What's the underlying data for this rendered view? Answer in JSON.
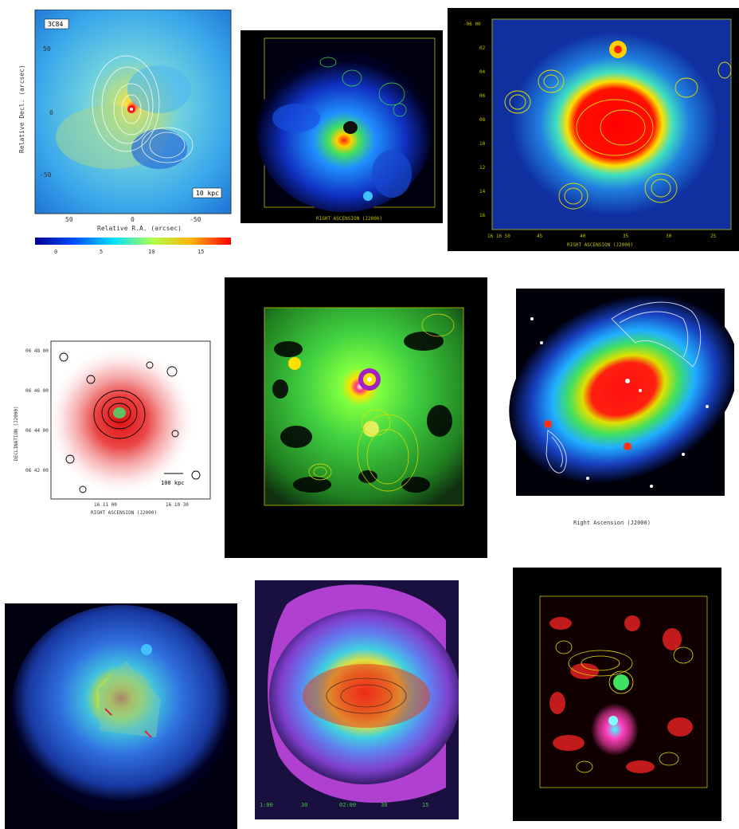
{
  "page": {
    "background": "#ffffff"
  },
  "panels": [
    {
      "name": "cluster-1",
      "id_label": "3C84",
      "ylabel": "Relative Decl. (arcsec)",
      "xlabel": "Relative R.A. (arcsec)",
      "xticks": [
        "50",
        "0",
        "-50"
      ],
      "yticks": [
        "50",
        "0",
        "-50"
      ],
      "scalebar": "10 kpc",
      "colorbar_ticks": [
        "0",
        "5",
        "10",
        "15"
      ]
    },
    {
      "name": "cluster-2",
      "xlabel": "RIGHT ASCENSION (J2000)"
    },
    {
      "name": "cluster-3",
      "xlabel": "RIGHT ASCENSION (J2000)",
      "xticks": [
        "16 16 50",
        "45",
        "40",
        "35",
        "30",
        "25"
      ],
      "yticks": [
        "-06 00",
        "02",
        "04",
        "06",
        "08",
        "10",
        "12",
        "14",
        "16"
      ]
    },
    {
      "name": "cluster-4",
      "ylabel": "DECLINATION (J2000)",
      "xlabel": "RIGHT ASCENSION (J2000)",
      "xticks": [
        "16 11 00",
        "16 10 30"
      ],
      "yticks": [
        "06 48 00",
        "06 46 00",
        "06 44 00",
        "06 42 00"
      ],
      "scalebar": "100 kpc"
    },
    {
      "name": "cluster-5"
    },
    {
      "name": "cluster-6",
      "xlabel": "Right Ascension (J2000)"
    },
    {
      "name": "cluster-7"
    },
    {
      "name": "cluster-8",
      "xticks": [
        "1:00",
        "30",
        "02:00",
        "30",
        "15"
      ]
    },
    {
      "name": "cluster-9"
    }
  ]
}
